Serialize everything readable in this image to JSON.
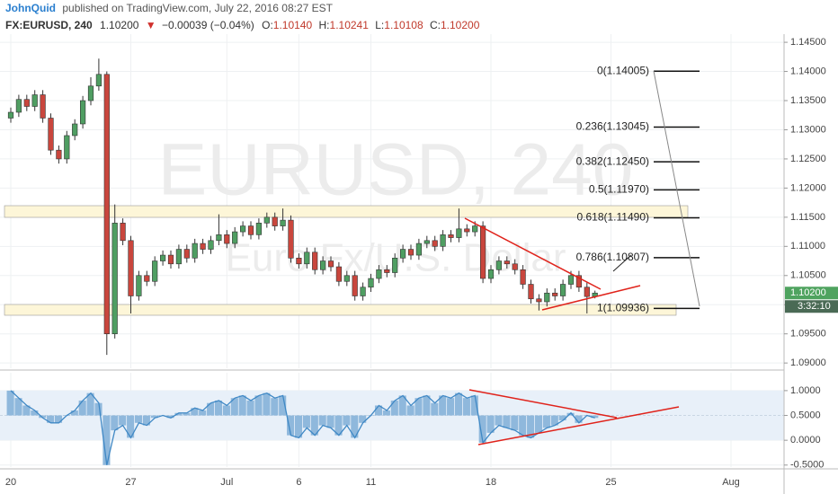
{
  "header": {
    "author": "JohnQuid",
    "published": "published on TradingView.com, July 22, 2016 08:27 EST",
    "symbol": "FX:EURUSD, 240",
    "price": "1.10200",
    "arrow": "▼",
    "change": "−0.00039 (−0.04%)",
    "ohlc": [
      {
        "label": "O:",
        "value": "1.10140"
      },
      {
        "label": "H:",
        "value": "1.10241"
      },
      {
        "label": "L:",
        "value": "1.10108"
      },
      {
        "label": "C:",
        "value": "1.10200"
      }
    ]
  },
  "chart_data": [
    {
      "type": "candlestick",
      "watermark": "EURUSD, 240",
      "watermark_subtitle": "Euro Fx/U.S. Dollar",
      "up_color": "#4f9e62",
      "down_color": "#c9463d",
      "ylim": [
        1.0891,
        1.1464
      ],
      "yticks": [
        {
          "value": 1.145,
          "label": "1.14500"
        },
        {
          "value": 1.14,
          "label": "1.14000"
        },
        {
          "value": 1.135,
          "label": "1.13500"
        },
        {
          "value": 1.13,
          "label": "1.13000"
        },
        {
          "value": 1.125,
          "label": "1.12500"
        },
        {
          "value": 1.12,
          "label": "1.12000"
        },
        {
          "value": 1.115,
          "label": "1.11500"
        },
        {
          "value": 1.11,
          "label": "1.11000"
        },
        {
          "value": 1.105,
          "label": "1.10500"
        },
        {
          "value": 1.1,
          "label": "1.10000"
        },
        {
          "value": 1.095,
          "label": "1.09500"
        },
        {
          "value": 1.09,
          "label": "1.09000"
        }
      ],
      "grid": true,
      "last_price": {
        "value": 1.102,
        "label": "1.10200"
      },
      "countdown": "3:32:10",
      "fib_levels": [
        {
          "value": 1.14005,
          "label": "0(1.14005)"
        },
        {
          "value": 1.13045,
          "label": "0.236(1.13045)"
        },
        {
          "value": 1.1245,
          "label": "0.382(1.12450)"
        },
        {
          "value": 1.1197,
          "label": "0.5(1.11970)"
        },
        {
          "value": 1.1149,
          "label": "0.618(1.11490)"
        },
        {
          "value": 1.10807,
          "label": "0.786(1.10807)"
        },
        {
          "value": 1.09936,
          "label": "1(1.09936)"
        }
      ],
      "categories": [
        "20",
        null,
        null,
        null,
        null,
        null,
        null,
        null,
        null,
        null,
        null,
        null,
        null,
        null,
        null,
        "27",
        null,
        null,
        null,
        null,
        null,
        null,
        null,
        null,
        null,
        null,
        null,
        "Jul",
        null,
        null,
        null,
        null,
        null,
        null,
        null,
        null,
        "6",
        null,
        null,
        null,
        null,
        null,
        null,
        null,
        null,
        "11",
        null,
        null,
        null,
        null,
        null,
        null,
        null,
        null,
        null,
        null,
        null,
        null,
        null,
        null,
        "18",
        null,
        null,
        null,
        null,
        null,
        null,
        null,
        null,
        null,
        null,
        null,
        null,
        null,
        null,
        "25",
        null,
        null,
        null,
        null,
        null,
        null,
        null,
        null,
        null,
        null,
        null,
        null,
        null,
        null,
        "Aug",
        null,
        null,
        null,
        null,
        null,
        null
      ],
      "candles": [
        [
          1.132,
          1.1338,
          1.1312,
          1.133
        ],
        [
          1.133,
          1.136,
          1.1322,
          1.1352
        ],
        [
          1.1352,
          1.136,
          1.1332,
          1.134
        ],
        [
          1.134,
          1.1368,
          1.1332,
          1.136
        ],
        [
          1.136,
          1.1368,
          1.1312,
          1.132
        ],
        [
          1.132,
          1.1328,
          1.1257,
          1.1265
        ],
        [
          1.1265,
          1.1273,
          1.1242,
          1.125
        ],
        [
          1.125,
          1.1298,
          1.1242,
          1.129
        ],
        [
          1.129,
          1.1318,
          1.1282,
          1.131
        ],
        [
          1.131,
          1.1358,
          1.1302,
          1.135
        ],
        [
          1.135,
          1.139,
          1.1342,
          1.1375
        ],
        [
          1.1375,
          1.1422,
          1.1367,
          1.1395
        ],
        [
          1.1395,
          1.14,
          1.0914,
          1.095
        ],
        [
          1.095,
          1.1172,
          1.0942,
          1.114
        ],
        [
          1.114,
          1.1148,
          1.1102,
          1.111
        ],
        [
          1.111,
          1.1118,
          1.0985,
          1.1015
        ],
        [
          1.1015,
          1.1058,
          1.1007,
          1.105
        ],
        [
          1.105,
          1.1058,
          1.1032,
          1.104
        ],
        [
          1.104,
          1.1083,
          1.1032,
          1.1075
        ],
        [
          1.1075,
          1.1093,
          1.1067,
          1.1085
        ],
        [
          1.1085,
          1.1093,
          1.1062,
          1.107
        ],
        [
          1.107,
          1.1103,
          1.1062,
          1.1095
        ],
        [
          1.1095,
          1.1103,
          1.1072,
          1.108
        ],
        [
          1.108,
          1.1113,
          1.1072,
          1.1105
        ],
        [
          1.1105,
          1.1113,
          1.1087,
          1.1095
        ],
        [
          1.1095,
          1.1118,
          1.1087,
          1.111
        ],
        [
          1.111,
          1.1155,
          1.1102,
          1.112
        ],
        [
          1.112,
          1.1128,
          1.1097,
          1.1105
        ],
        [
          1.1105,
          1.1133,
          1.1097,
          1.1125
        ],
        [
          1.1125,
          1.1143,
          1.1117,
          1.1135
        ],
        [
          1.1135,
          1.1143,
          1.1112,
          1.112
        ],
        [
          1.112,
          1.1148,
          1.1112,
          1.114
        ],
        [
          1.114,
          1.1158,
          1.1132,
          1.115
        ],
        [
          1.115,
          1.1158,
          1.1127,
          1.1135
        ],
        [
          1.1135,
          1.1165,
          1.1127,
          1.1145
        ],
        [
          1.1145,
          1.1153,
          1.1072,
          1.108
        ],
        [
          1.108,
          1.1088,
          1.1062,
          1.107
        ],
        [
          1.107,
          1.1098,
          1.1062,
          1.109
        ],
        [
          1.109,
          1.1098,
          1.1052,
          1.106
        ],
        [
          1.106,
          1.1083,
          1.1052,
          1.1075
        ],
        [
          1.1075,
          1.1083,
          1.1057,
          1.1065
        ],
        [
          1.1065,
          1.1073,
          1.1032,
          1.104
        ],
        [
          1.104,
          1.1058,
          1.1032,
          1.105
        ],
        [
          1.105,
          1.1058,
          1.1007,
          1.1015
        ],
        [
          1.1015,
          1.1038,
          1.1007,
          1.103
        ],
        [
          1.103,
          1.1053,
          1.1022,
          1.1045
        ],
        [
          1.1045,
          1.1068,
          1.1037,
          1.106
        ],
        [
          1.106,
          1.1068,
          1.1047,
          1.1055
        ],
        [
          1.1055,
          1.1088,
          1.1047,
          1.108
        ],
        [
          1.108,
          1.1103,
          1.1072,
          1.1095
        ],
        [
          1.1095,
          1.1103,
          1.1077,
          1.1085
        ],
        [
          1.1085,
          1.1113,
          1.1077,
          1.1105
        ],
        [
          1.1105,
          1.1118,
          1.1097,
          1.111
        ],
        [
          1.111,
          1.1118,
          1.1092,
          1.11
        ],
        [
          1.11,
          1.1128,
          1.1092,
          1.112
        ],
        [
          1.112,
          1.1128,
          1.1107,
          1.1115
        ],
        [
          1.1115,
          1.1165,
          1.1107,
          1.113
        ],
        [
          1.113,
          1.1138,
          1.1117,
          1.1125
        ],
        [
          1.1125,
          1.1143,
          1.1117,
          1.1135
        ],
        [
          1.1135,
          1.1143,
          1.1037,
          1.1045
        ],
        [
          1.1045,
          1.1068,
          1.1037,
          1.106
        ],
        [
          1.106,
          1.1083,
          1.1052,
          1.1075
        ],
        [
          1.1075,
          1.1083,
          1.1062,
          1.107
        ],
        [
          1.107,
          1.1078,
          1.1052,
          1.106
        ],
        [
          1.106,
          1.1068,
          1.1027,
          1.1035
        ],
        [
          1.1035,
          1.1043,
          1.1002,
          1.101
        ],
        [
          1.101,
          1.1018,
          1.099,
          1.1005
        ],
        [
          1.1005,
          1.1028,
          1.0997,
          1.102
        ],
        [
          1.102,
          1.1028,
          1.1007,
          1.1015
        ],
        [
          1.1015,
          1.1043,
          1.1007,
          1.1035
        ],
        [
          1.1035,
          1.1058,
          1.1027,
          1.105
        ],
        [
          1.105,
          1.1058,
          1.1022,
          1.103
        ],
        [
          1.103,
          1.1038,
          1.0985,
          1.1014
        ],
        [
          1.1014,
          1.10241,
          1.10108,
          1.102
        ],
        null,
        null,
        null,
        null,
        null,
        null,
        null,
        null,
        null,
        null,
        null,
        null,
        null,
        null,
        null,
        null,
        null,
        null,
        null,
        null,
        null,
        null,
        null
      ]
    },
    {
      "type": "bar",
      "color": "#8fb8dc",
      "line_color": "#3f88c5",
      "band_color": "#e8f0f9",
      "baseline": 0.5,
      "band": [
        0,
        1
      ],
      "ylim": [
        -0.54,
        1.36
      ],
      "yticks": [
        {
          "value": 1,
          "label": "1.0000"
        },
        {
          "value": 0.5,
          "label": "0.5000"
        },
        {
          "value": 0,
          "label": "0.0000"
        },
        {
          "value": -0.5,
          "label": "-0.5000"
        }
      ],
      "values": [
        1.0,
        0.85,
        0.7,
        0.6,
        0.45,
        0.35,
        0.35,
        0.5,
        0.6,
        0.8,
        0.95,
        0.75,
        -0.5,
        0.2,
        0.3,
        0.05,
        0.35,
        0.3,
        0.45,
        0.5,
        0.45,
        0.55,
        0.55,
        0.65,
        0.6,
        0.75,
        0.8,
        0.7,
        0.85,
        0.9,
        0.8,
        0.9,
        0.95,
        0.85,
        0.9,
        0.1,
        0.05,
        0.25,
        0.1,
        0.3,
        0.25,
        0.1,
        0.3,
        0.05,
        0.35,
        0.5,
        0.7,
        0.6,
        0.8,
        0.9,
        0.7,
        0.85,
        0.9,
        0.75,
        0.9,
        0.85,
        0.95,
        0.85,
        0.9,
        -0.05,
        0.15,
        0.3,
        0.25,
        0.2,
        0.1,
        0.05,
        0.15,
        0.25,
        0.3,
        0.4,
        0.55,
        0.35,
        0.5,
        0.45,
        null,
        null,
        null,
        null,
        null,
        null,
        null,
        null,
        null,
        null,
        null,
        null,
        null,
        null,
        null,
        null,
        null,
        null,
        null,
        null,
        null,
        null,
        null
      ]
    }
  ]
}
